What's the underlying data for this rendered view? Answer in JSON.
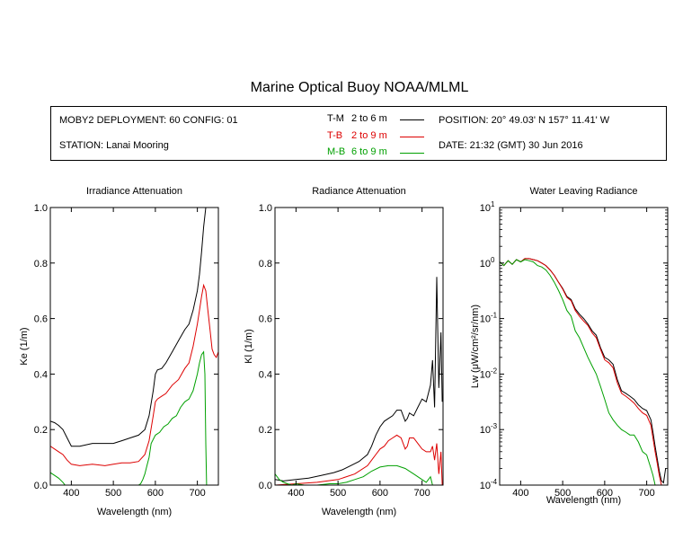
{
  "title": "Marine Optical Buoy NOAA/MLML",
  "info": {
    "deployment": "MOBY2 DEPLOYMENT: 60 CONFIG: 01",
    "station": "STATION: Lanai Mooring",
    "position": "POSITION: 20° 49.03' N   157° 11.41' W",
    "date": "DATE: 21:32 (GMT) 30 Jun 2016"
  },
  "legend": [
    {
      "label": "T-M",
      "range": "2 to 6  m",
      "color": "#000000"
    },
    {
      "label": "T-B",
      "range": "2 to 9  m",
      "color": "#dd0000"
    },
    {
      "label": "M-B",
      "range": "6 to 9  m",
      "color": "#00a000"
    }
  ],
  "chart_data": [
    {
      "type": "line",
      "title": "Irradiance Attenuation",
      "xlabel": "Wavelength (nm)",
      "ylabel": "Ke  (1/m)",
      "xlim": [
        350,
        750
      ],
      "ylim": [
        0,
        1.0
      ],
      "xticks": [
        400,
        500,
        600,
        700
      ],
      "yticks": [
        0.0,
        0.2,
        0.4,
        0.6,
        0.8,
        1.0
      ],
      "ytick_labels": [
        "0.0",
        "0.2",
        "0.4",
        "0.6",
        "0.8",
        "1.0"
      ],
      "series": [
        {
          "name": "T-M",
          "color": "#000000",
          "x": [
            350,
            360,
            370,
            380,
            390,
            400,
            420,
            450,
            480,
            500,
            520,
            540,
            560,
            575,
            585,
            595,
            600,
            605,
            615,
            625,
            640,
            655,
            670,
            680,
            690,
            700,
            705,
            710,
            715,
            720,
            722
          ],
          "y": [
            0.23,
            0.225,
            0.215,
            0.2,
            0.17,
            0.14,
            0.14,
            0.15,
            0.15,
            0.15,
            0.16,
            0.17,
            0.18,
            0.2,
            0.25,
            0.34,
            0.4,
            0.415,
            0.42,
            0.44,
            0.48,
            0.52,
            0.56,
            0.58,
            0.63,
            0.7,
            0.76,
            0.84,
            0.93,
            1.0,
            1.0
          ]
        },
        {
          "name": "T-B",
          "color": "#dd0000",
          "x": [
            350,
            360,
            370,
            380,
            390,
            400,
            420,
            450,
            480,
            500,
            520,
            540,
            560,
            575,
            585,
            595,
            600,
            605,
            615,
            625,
            640,
            655,
            670,
            680,
            690,
            700,
            705,
            710,
            715,
            720,
            725,
            730,
            735,
            740,
            745,
            750
          ],
          "y": [
            0.14,
            0.13,
            0.12,
            0.11,
            0.09,
            0.075,
            0.07,
            0.075,
            0.07,
            0.075,
            0.08,
            0.08,
            0.085,
            0.11,
            0.16,
            0.25,
            0.3,
            0.31,
            0.32,
            0.33,
            0.36,
            0.38,
            0.42,
            0.44,
            0.5,
            0.58,
            0.63,
            0.68,
            0.72,
            0.7,
            0.63,
            0.56,
            0.49,
            0.47,
            0.46,
            0.48
          ]
        },
        {
          "name": "M-B",
          "color": "#00a000",
          "x": [
            350,
            360,
            370,
            380,
            385,
            560,
            565,
            570,
            575,
            580,
            585,
            590,
            600,
            610,
            620,
            630,
            640,
            650,
            660,
            670,
            680,
            690,
            700,
            705,
            710,
            715,
            718,
            720,
            722
          ],
          "y": [
            0.045,
            0.035,
            0.025,
            0.01,
            0.0,
            0.0,
            0.005,
            0.02,
            0.04,
            0.07,
            0.1,
            0.15,
            0.18,
            0.19,
            0.21,
            0.22,
            0.24,
            0.25,
            0.28,
            0.3,
            0.31,
            0.34,
            0.4,
            0.44,
            0.47,
            0.48,
            0.4,
            0.15,
            0.0
          ]
        }
      ]
    },
    {
      "type": "line",
      "title": "Radiance Attenuation",
      "xlabel": "Wavelength (nm)",
      "ylabel": "Kl  (1/m)",
      "xlim": [
        350,
        750
      ],
      "ylim": [
        0,
        1.0
      ],
      "xticks": [
        400,
        500,
        600,
        700
      ],
      "yticks": [
        0.0,
        0.2,
        0.4,
        0.6,
        0.8,
        1.0
      ],
      "ytick_labels": [
        "0.0",
        "0.2",
        "0.4",
        "0.6",
        "0.8",
        "1.0"
      ],
      "series": [
        {
          "name": "T-M",
          "color": "#000000",
          "x": [
            350,
            370,
            400,
            430,
            460,
            490,
            510,
            530,
            550,
            570,
            580,
            590,
            600,
            610,
            620,
            630,
            640,
            650,
            660,
            665,
            670,
            680,
            690,
            700,
            710,
            720,
            725,
            730,
            735,
            740,
            745,
            748
          ],
          "y": [
            0.02,
            0.015,
            0.02,
            0.025,
            0.035,
            0.045,
            0.055,
            0.07,
            0.085,
            0.11,
            0.14,
            0.18,
            0.21,
            0.23,
            0.24,
            0.25,
            0.27,
            0.27,
            0.23,
            0.24,
            0.26,
            0.25,
            0.28,
            0.31,
            0.3,
            0.36,
            0.45,
            0.28,
            0.75,
            0.35,
            0.55,
            0.3
          ]
        },
        {
          "name": "T-B",
          "color": "#dd0000",
          "x": [
            350,
            400,
            450,
            500,
            540,
            570,
            590,
            600,
            610,
            620,
            630,
            640,
            650,
            660,
            665,
            670,
            680,
            690,
            700,
            710,
            720,
            725,
            730,
            735,
            740,
            745,
            748
          ],
          "y": [
            0.0,
            0.005,
            0.01,
            0.02,
            0.04,
            0.07,
            0.11,
            0.13,
            0.14,
            0.16,
            0.17,
            0.18,
            0.17,
            0.13,
            0.14,
            0.17,
            0.17,
            0.15,
            0.13,
            0.12,
            0.12,
            0.14,
            0.09,
            0.15,
            0.04,
            0.12,
            0.0
          ]
        },
        {
          "name": "M-B",
          "color": "#00a000",
          "x": [
            350,
            360,
            370,
            380,
            390,
            400,
            420,
            450,
            480,
            500,
            520,
            540,
            560,
            580,
            600,
            620,
            640,
            660,
            680,
            700,
            710,
            720,
            725,
            730
          ],
          "y": [
            0.04,
            0.02,
            0.01,
            0.005,
            0.0,
            0.005,
            0.0,
            0.0,
            0.005,
            0.005,
            0.01,
            0.02,
            0.03,
            0.05,
            0.065,
            0.07,
            0.07,
            0.06,
            0.04,
            0.02,
            0.01,
            0.03,
            0.0,
            0.0
          ]
        }
      ]
    },
    {
      "type": "line",
      "title": "Water Leaving Radiance",
      "xlabel": "Wavelength (nm)",
      "ylabel": "Lw  (μW/cm²/sr/nm)",
      "xlim": [
        350,
        750
      ],
      "ylim": [
        0.0001,
        10
      ],
      "yscale": "log",
      "xticks": [
        400,
        500,
        600,
        700
      ],
      "yticks": [
        0.0001,
        0.001,
        0.01,
        0.1,
        1,
        10
      ],
      "ytick_base": "10",
      "ytick_exponents": [
        "-4",
        "-3",
        "-2",
        "-1",
        "0",
        "1"
      ],
      "series": [
        {
          "name": "T-M",
          "color": "#000000",
          "x": [
            350,
            360,
            370,
            380,
            390,
            400,
            410,
            420,
            430,
            440,
            450,
            460,
            470,
            480,
            490,
            500,
            510,
            520,
            530,
            540,
            550,
            560,
            570,
            580,
            590,
            600,
            610,
            620,
            630,
            640,
            650,
            660,
            670,
            680,
            690,
            700,
            710,
            715,
            720,
            725,
            730,
            735,
            740,
            745
          ],
          "y": [
            1.05,
            0.9,
            1.1,
            0.95,
            1.15,
            1.05,
            1.2,
            1.2,
            1.15,
            1.1,
            1.0,
            0.9,
            0.75,
            0.6,
            0.45,
            0.35,
            0.25,
            0.22,
            0.15,
            0.12,
            0.1,
            0.08,
            0.06,
            0.05,
            0.03,
            0.02,
            0.018,
            0.015,
            0.008,
            0.005,
            0.0045,
            0.004,
            0.0035,
            0.0028,
            0.0024,
            0.0022,
            0.0015,
            0.0009,
            0.0005,
            0.0003,
            0.00018,
            0.00012,
            0.00011,
            0.0002
          ]
        },
        {
          "name": "T-B",
          "color": "#dd0000",
          "x": [
            350,
            360,
            370,
            380,
            390,
            400,
            410,
            420,
            430,
            440,
            450,
            460,
            470,
            480,
            490,
            500,
            510,
            520,
            530,
            540,
            550,
            560,
            570,
            580,
            590,
            600,
            610,
            620,
            630,
            640,
            650,
            660,
            670,
            680,
            690,
            700,
            710,
            715,
            720,
            725,
            730,
            735,
            740
          ],
          "y": [
            1.05,
            0.9,
            1.1,
            0.95,
            1.15,
            1.05,
            1.2,
            1.2,
            1.15,
            1.1,
            1.0,
            0.9,
            0.75,
            0.6,
            0.45,
            0.34,
            0.24,
            0.21,
            0.14,
            0.11,
            0.09,
            0.075,
            0.055,
            0.045,
            0.028,
            0.018,
            0.016,
            0.013,
            0.007,
            0.0045,
            0.004,
            0.0035,
            0.003,
            0.0024,
            0.002,
            0.0018,
            0.0012,
            0.0007,
            0.0004,
            0.00025,
            0.00015,
            0.0001,
            0.0001
          ]
        },
        {
          "name": "M-B",
          "color": "#00a000",
          "x": [
            350,
            360,
            370,
            380,
            390,
            400,
            410,
            420,
            430,
            440,
            450,
            460,
            470,
            480,
            490,
            500,
            510,
            520,
            530,
            540,
            550,
            560,
            570,
            580,
            590,
            600,
            610,
            620,
            630,
            640,
            650,
            660,
            670,
            680,
            690,
            700,
            710,
            715,
            720,
            725,
            730
          ],
          "y": [
            1.05,
            0.9,
            1.1,
            0.95,
            1.15,
            1.05,
            1.15,
            1.1,
            1.05,
            0.9,
            0.85,
            0.75,
            0.6,
            0.45,
            0.32,
            0.22,
            0.14,
            0.11,
            0.06,
            0.045,
            0.03,
            0.02,
            0.014,
            0.01,
            0.006,
            0.0035,
            0.002,
            0.0015,
            0.0012,
            0.001,
            0.0009,
            0.0008,
            0.0008,
            0.0006,
            0.0004,
            0.00035,
            0.0002,
            0.00015,
            0.0001,
            0.0001,
            0.0001
          ]
        }
      ]
    }
  ]
}
